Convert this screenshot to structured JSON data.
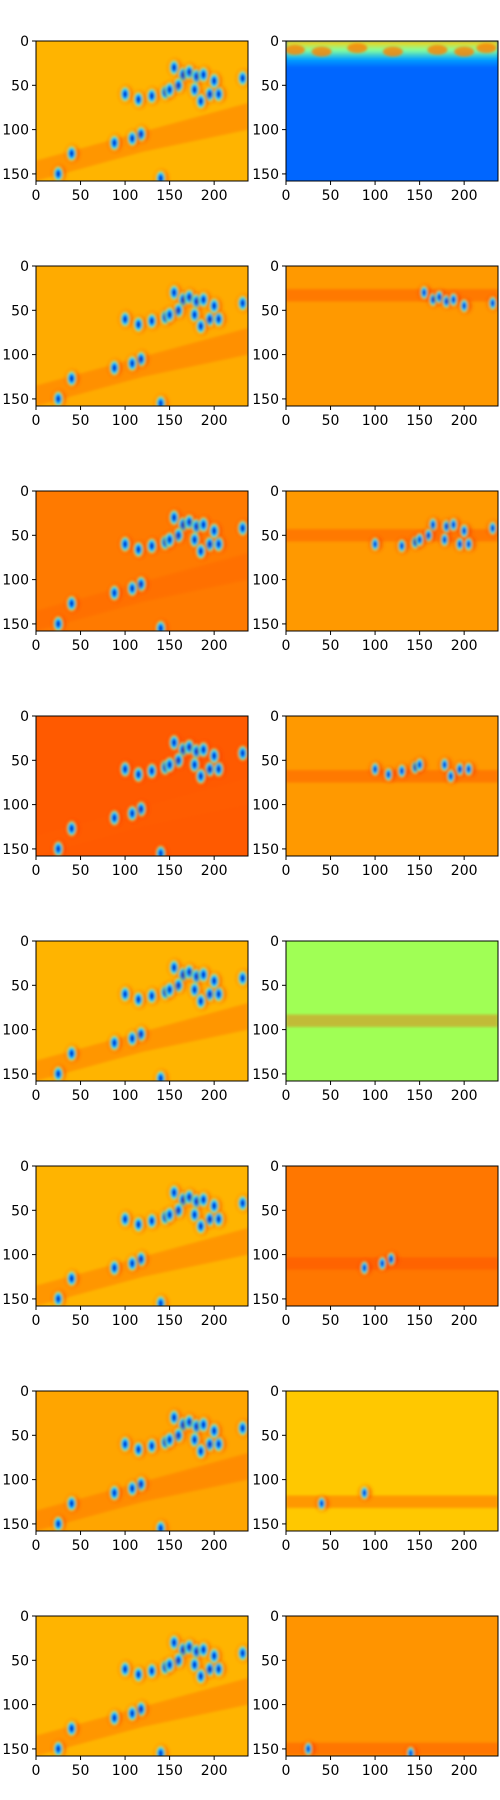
{
  "chart_data": {
    "type": "heatmap",
    "colormap": "jet",
    "layout": "8 rows x 2 columns of image panels",
    "x_ticks": [
      0,
      50,
      100,
      150,
      200
    ],
    "y_ticks": [
      0,
      50,
      100,
      150
    ],
    "xlim": [
      0,
      238
    ],
    "ylim": [
      158,
      0
    ],
    "x_tick_labels": [
      "0",
      "50",
      "100",
      "150",
      "200"
    ],
    "y_tick_labels": [
      "0",
      "50",
      "100",
      "150"
    ],
    "left_column_backgrounds": [
      "#ffb400",
      "#ffab00",
      "#ff7a00",
      "#ff5a00",
      "#ffb400",
      "#ffb400",
      "#ffa500",
      "#ffb400"
    ],
    "right_column_backgrounds": [
      "#0066ff",
      "#ff9900",
      "#ff9900",
      "#ff9900",
      "#a0ff55",
      "#ff7700",
      "#ffc800",
      "#ff9400"
    ],
    "right_column_band_y": [
      10,
      33,
      50,
      68,
      90,
      110,
      125,
      150
    ]
  }
}
